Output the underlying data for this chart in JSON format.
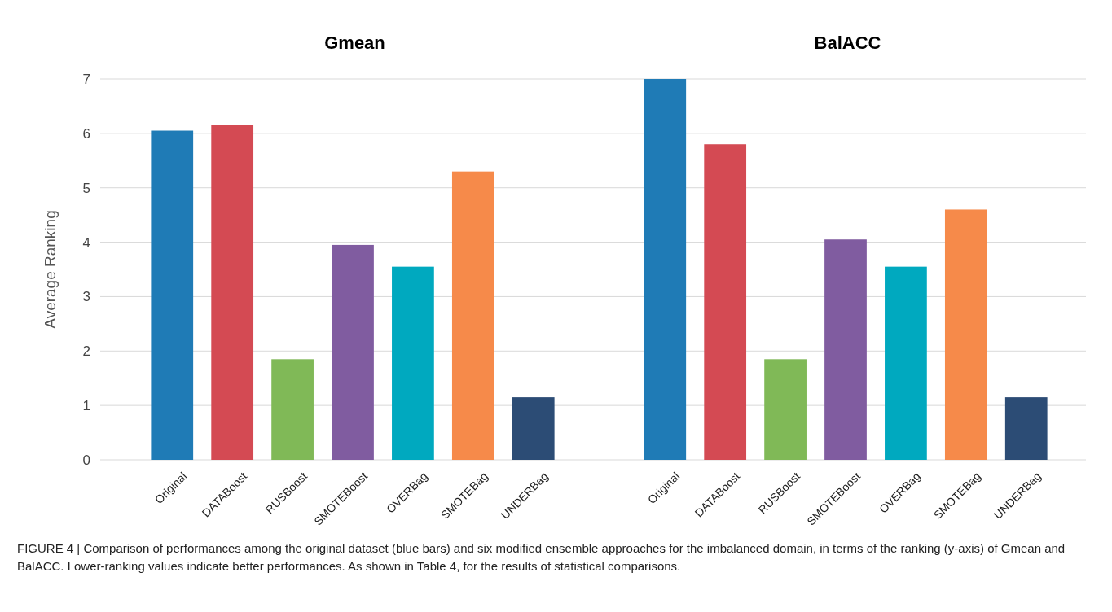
{
  "chart_data": [
    {
      "type": "bar",
      "title": "Gmean",
      "ylabel": "Average Ranking",
      "categories": [
        "Original",
        "DATABoost",
        "RUSBoost",
        "SMOTEBoost",
        "OVERBag",
        "SMOTEBag",
        "UNDERBag"
      ],
      "values": [
        6.05,
        6.15,
        1.85,
        3.95,
        3.55,
        5.3,
        1.15
      ],
      "colors": [
        "#1f7bb6",
        "#d44a53",
        "#80b957",
        "#805ca0",
        "#00a9bf",
        "#f68a4a",
        "#2c4c75"
      ],
      "ylim": [
        0,
        7
      ],
      "yticks": [
        0,
        1,
        2,
        3,
        4,
        5,
        6,
        7
      ],
      "grid": "y",
      "annotations": [
        "FIGURE 4 | Comparison of performances among the original dataset (blue bars) and six modified ensemble approaches for the imbalanced domain, in terms of the ranking (y-axis) of Gmean and BalACC. Lower-ranking values indicate better performances. As shown in Table 4, for the results of statistical comparisons."
      ]
    },
    {
      "type": "bar",
      "title": "BalACC",
      "categories": [
        "Original",
        "DATABoost",
        "RUSBoost",
        "SMOTEBoost",
        "OVERBag",
        "SMOTEBag",
        "UNDERBag"
      ],
      "values": [
        7.0,
        5.8,
        1.85,
        4.05,
        3.55,
        4.6,
        1.15
      ],
      "colors": [
        "#1f7bb6",
        "#d44a53",
        "#80b957",
        "#805ca0",
        "#00a9bf",
        "#f68a4a",
        "#2c4c75"
      ],
      "ylim": [
        0,
        7
      ],
      "yticks": [
        0,
        1,
        2,
        3,
        4,
        5,
        6,
        7
      ],
      "grid": "y",
      "tick_labels": "x"
    }
  ]
}
